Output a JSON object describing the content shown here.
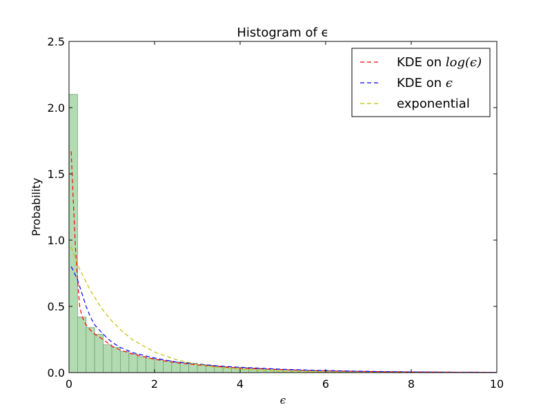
{
  "chart_data": {
    "type": "bar",
    "title": "Histogram of ϵ",
    "xlabel": "ϵ",
    "ylabel": "Probability",
    "xlim": [
      0,
      10
    ],
    "ylim": [
      0,
      2.5
    ],
    "x_ticks": [
      0,
      2,
      4,
      6,
      8,
      10
    ],
    "x_tick_labels": [
      "0",
      "2",
      "4",
      "6",
      "8",
      "10"
    ],
    "y_ticks": [
      0.0,
      0.5,
      1.0,
      1.5,
      2.0,
      2.5
    ],
    "y_tick_labels": [
      "0.0",
      "0.5",
      "1.0",
      "1.5",
      "2.0",
      "2.5"
    ],
    "grid": false,
    "legend_position": "top-right",
    "histogram": {
      "bin_width": 0.2,
      "color": "#b2dbb2",
      "edge_color": "#7aa07a",
      "bin_starts": [
        0.0,
        0.2,
        0.4,
        0.6,
        0.8,
        1.0,
        1.2,
        1.4,
        1.6,
        1.8,
        2.0,
        2.2,
        2.4,
        2.6,
        2.8,
        3.0,
        3.2,
        3.4,
        3.6,
        3.8,
        4.0,
        4.2,
        4.4,
        4.6,
        4.8,
        5.0,
        5.2,
        5.4,
        5.6,
        5.8,
        6.0,
        6.2,
        6.4,
        6.6,
        6.8,
        7.0,
        7.2,
        7.4,
        7.6,
        7.8,
        8.0,
        8.2,
        8.4,
        8.6,
        8.8,
        9.0,
        9.2,
        9.4,
        9.6,
        9.8
      ],
      "values": [
        2.1,
        0.42,
        0.34,
        0.29,
        0.21,
        0.19,
        0.16,
        0.14,
        0.12,
        0.11,
        0.1,
        0.09,
        0.08,
        0.075,
        0.07,
        0.06,
        0.055,
        0.05,
        0.045,
        0.04,
        0.038,
        0.035,
        0.032,
        0.028,
        0.025,
        0.022,
        0.02,
        0.018,
        0.016,
        0.015,
        0.013,
        0.012,
        0.011,
        0.01,
        0.009,
        0.008,
        0.007,
        0.006,
        0.006,
        0.005,
        0.005,
        0.004,
        0.004,
        0.003,
        0.003,
        0.003,
        0.002,
        0.002,
        0.002,
        0.002
      ]
    },
    "series": [
      {
        "name": "KDE on log(ϵ)",
        "color": "#ff0000",
        "x": [
          0.05,
          0.1,
          0.15,
          0.2,
          0.25,
          0.3,
          0.35,
          0.4,
          0.5,
          0.6,
          0.8,
          1.0,
          1.2,
          1.5,
          2.0,
          2.5,
          3.0,
          3.5,
          4.0,
          5.0,
          6.0,
          7.0,
          8.0,
          9.0,
          10.0
        ],
        "y": [
          1.67,
          1.3,
          0.95,
          0.7,
          0.5,
          0.43,
          0.39,
          0.36,
          0.32,
          0.29,
          0.25,
          0.2,
          0.17,
          0.14,
          0.1,
          0.075,
          0.058,
          0.045,
          0.034,
          0.022,
          0.013,
          0.008,
          0.005,
          0.003,
          0.002
        ]
      },
      {
        "name": "KDE on ϵ",
        "color": "#0000ff",
        "x": [
          0.05,
          0.1,
          0.2,
          0.3,
          0.4,
          0.5,
          0.6,
          0.8,
          1.0,
          1.2,
          1.5,
          2.0,
          2.5,
          3.0,
          3.5,
          4.0,
          5.0,
          6.0,
          7.0,
          8.0,
          9.0,
          10.0
        ],
        "y": [
          0.8,
          0.77,
          0.7,
          0.6,
          0.5,
          0.42,
          0.36,
          0.29,
          0.23,
          0.19,
          0.15,
          0.11,
          0.08,
          0.065,
          0.05,
          0.04,
          0.025,
          0.015,
          0.009,
          0.005,
          0.003,
          0.002
        ]
      },
      {
        "name": "exponential",
        "color": "#bfbf00",
        "x": [
          0.05,
          0.25,
          0.5,
          0.75,
          1.0,
          1.25,
          1.5,
          2.0,
          2.5,
          3.0,
          3.5,
          4.0,
          5.0,
          6.0,
          7.0,
          8.0,
          9.0,
          10.0
        ],
        "y": [
          0.95,
          0.78,
          0.62,
          0.49,
          0.39,
          0.31,
          0.245,
          0.155,
          0.098,
          0.062,
          0.039,
          0.025,
          0.01,
          0.004,
          0.002,
          0.001,
          0.0005,
          0.0002
        ]
      }
    ],
    "legend": [
      {
        "label_text": "KDE on ",
        "label_math": "log(ϵ)",
        "color": "#ff0000"
      },
      {
        "label_text": "KDE on ",
        "label_math": "ϵ",
        "color": "#0000ff"
      },
      {
        "label_text": "exponential",
        "label_math": "",
        "color": "#bfbf00"
      }
    ]
  }
}
